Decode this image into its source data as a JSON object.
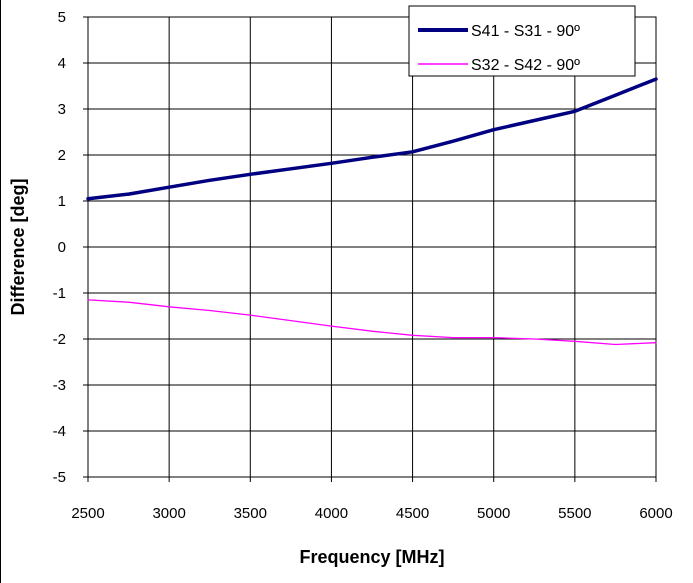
{
  "chart_data": {
    "type": "line",
    "title": "",
    "xlabel": "Frequency [MHz]",
    "ylabel": "Difference [deg]",
    "xlim": [
      2500,
      6000
    ],
    "ylim": [
      -5,
      5
    ],
    "x_ticks": [
      2500,
      3000,
      3500,
      4000,
      4500,
      5000,
      5500,
      6000
    ],
    "y_ticks": [
      -5,
      -4,
      -3,
      -2,
      -1,
      0,
      1,
      2,
      3,
      4,
      5
    ],
    "grid": true,
    "legend_position": "top-right",
    "series": [
      {
        "name": "S41 - S31 - 90º",
        "color": "#000080",
        "x": [
          2500,
          2750,
          3000,
          3250,
          3500,
          3750,
          4000,
          4250,
          4500,
          4750,
          5000,
          5250,
          5500,
          5750,
          6000
        ],
        "y": [
          1.05,
          1.15,
          1.3,
          1.45,
          1.58,
          1.7,
          1.82,
          1.95,
          2.07,
          2.3,
          2.55,
          2.75,
          2.95,
          3.3,
          3.65
        ]
      },
      {
        "name": "S32 - S42 - 90º",
        "color": "#ff00ff",
        "x": [
          2500,
          2750,
          3000,
          3250,
          3500,
          3750,
          4000,
          4250,
          4500,
          4750,
          5000,
          5250,
          5500,
          5750,
          6000
        ],
        "y": [
          -1.15,
          -1.2,
          -1.3,
          -1.38,
          -1.48,
          -1.6,
          -1.72,
          -1.83,
          -1.92,
          -1.97,
          -1.97,
          -2.0,
          -2.05,
          -2.12,
          -2.08
        ]
      }
    ]
  }
}
